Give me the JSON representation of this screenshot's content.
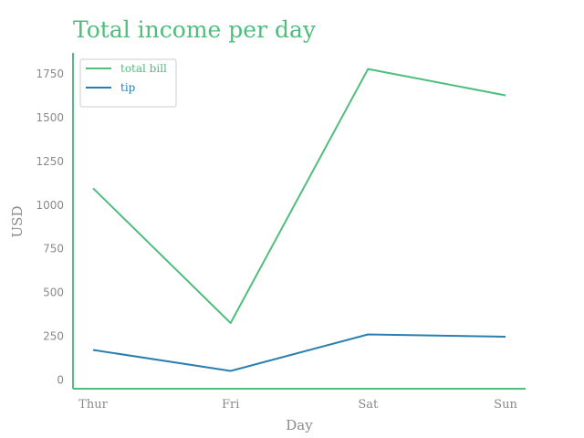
{
  "chart_data": {
    "type": "line",
    "title": "Total income per day",
    "xlabel": "Day",
    "ylabel": "USD",
    "categories": [
      "Thur",
      "Fri",
      "Sat",
      "Sun"
    ],
    "ylim": [
      -50,
      1870
    ],
    "yticks": [
      0,
      250,
      500,
      750,
      1000,
      1250,
      1500,
      1750
    ],
    "grid": false,
    "legend_position": "top-left",
    "series": [
      {
        "name": "total bill",
        "color": "#4fbe7d",
        "values": [
          1096.33,
          325.88,
          1778.4,
          1627.16
        ]
      },
      {
        "name": "tip",
        "color": "#2a7fb0",
        "values": [
          171.83,
          51.96,
          260.4,
          247.39
        ]
      }
    ],
    "title_color": "#4fbe7d",
    "axis_color": "#4fbe7d",
    "text_color": "#8a8a8a"
  }
}
